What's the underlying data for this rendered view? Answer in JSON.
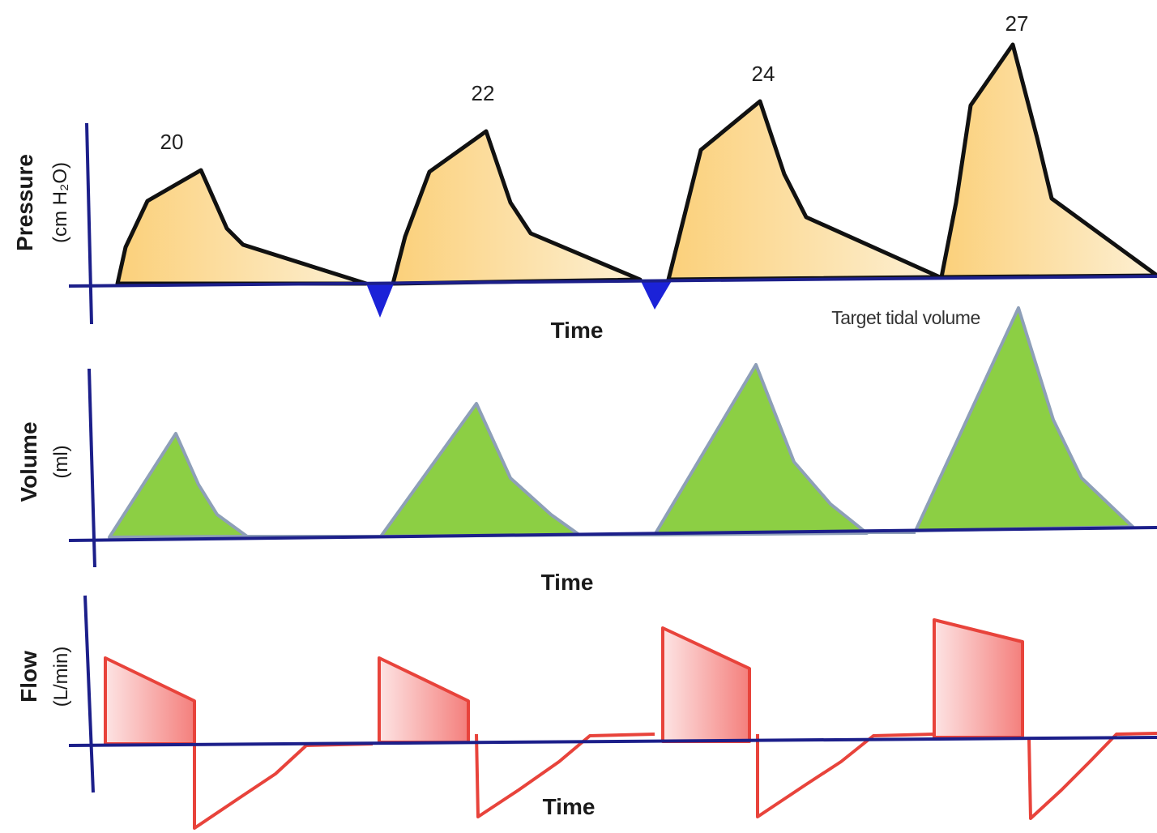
{
  "colors": {
    "axis": "#1c1f8a",
    "pressure_fill": "#fbd98a",
    "pressure_stroke": "#111111",
    "trigger": "#1b22d8",
    "volume_fill": "#8ccf44",
    "volume_stroke": "#8e9fb8",
    "flow_fill": "#f7a8a8",
    "flow_stroke": "#e8433b"
  },
  "pressure_panel": {
    "ylabel": "Pressure",
    "yunit": "(cm H₂O)",
    "xlabel": "Time",
    "peaks": [
      "20",
      "22",
      "24",
      "27"
    ]
  },
  "volume_panel": {
    "ylabel": "Volume",
    "yunit": "(ml)",
    "xlabel": "Time",
    "annotation": "Target tidal volume"
  },
  "flow_panel": {
    "ylabel": "Flow",
    "yunit": "(L/min)",
    "xlabel": "Time"
  }
}
